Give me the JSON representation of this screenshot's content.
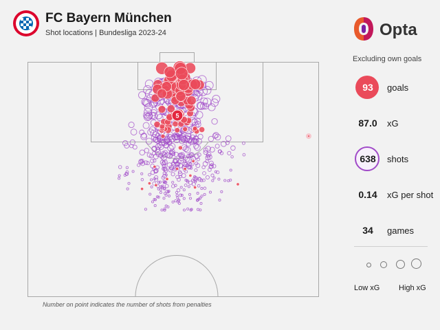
{
  "header": {
    "title": "FC Bayern München",
    "subtitle": "Shot locations | Bundesliga 2023-24",
    "crest_letters": "FCB"
  },
  "brand": {
    "wordmark": "Opta",
    "mark_color": "#e85a2c"
  },
  "colors": {
    "background": "#f2f2f2",
    "goal": "#ea4a5a",
    "shot_no_goal": "#a04ac8",
    "pitch_line": "#a8a8a8"
  },
  "footnote": "Number on point indicates the number of shots from penalties",
  "stats": {
    "note": "Excluding own goals",
    "goals_value": "93",
    "goals_label": "goals",
    "xg_value": "87.0",
    "xg_label": "xG",
    "shots_value": "638",
    "shots_label": "shots",
    "xg_per_shot_value": "0.14",
    "xg_per_shot_label": "xG per shot",
    "games_value": "34",
    "games_label": "games"
  },
  "legend": {
    "low": "Low xG",
    "high": "High xG"
  },
  "chart_data": {
    "type": "scatter",
    "title": "FC Bayern München",
    "subtitle": "Shot locations | Bundesliga 2023-24",
    "marker_size_encodes": "xG",
    "goals": 93,
    "shots": 638,
    "xG": 87.0,
    "xG_per_shot": 0.14,
    "games": 34,
    "penalty_shots": 5,
    "annotation": "Number on point indicates the number of shots from penalties"
  }
}
